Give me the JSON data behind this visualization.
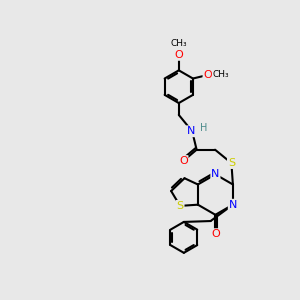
{
  "bg_color": "#e8e8e8",
  "bond_color": "#000000",
  "atom_colors": {
    "N": "#0000ff",
    "O": "#ff0000",
    "S": "#cccc00",
    "H": "#4a8a8a",
    "C": "#000000"
  },
  "line_width": 1.5,
  "font_size": 8
}
